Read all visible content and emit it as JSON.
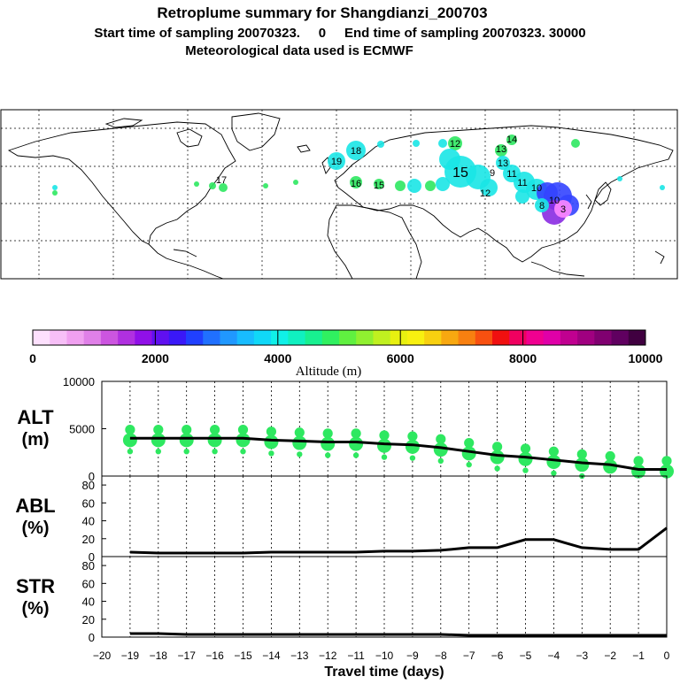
{
  "header": {
    "title": "Retroplume summary for Shangdianzi_200703",
    "subtitle": "Start time of sampling 20070323.     0     End time of sampling 20070323. 30000",
    "met_line": "Meteorological data used is ECMWF"
  },
  "colors": {
    "plume_cyan": "#19e6e6",
    "plume_green": "#2ee860",
    "plume_blue": "#3344ff",
    "plume_purple": "#8a2be2",
    "plume_pink": "#ff88ff",
    "line_black": "#000000",
    "border": "#000000"
  },
  "map": {
    "label_count_note": "plume labels are travel days",
    "labels": [
      {
        "t": "19",
        "tone": "cyan"
      },
      {
        "t": "18",
        "tone": "cyan"
      },
      {
        "t": "17",
        "tone": "green"
      },
      {
        "t": "16",
        "tone": "green"
      },
      {
        "t": "15",
        "tone": "green"
      },
      {
        "t": "14",
        "tone": "green"
      },
      {
        "t": "13",
        "tone": "green"
      },
      {
        "t": "12",
        "tone": "green"
      },
      {
        "t": "11",
        "tone": "cyan"
      },
      {
        "t": "10",
        "tone": "cyan"
      },
      {
        "t": "9",
        "tone": "cyan"
      },
      {
        "t": "8",
        "tone": "cyan"
      },
      {
        "t": "15",
        "tone": "cyan"
      },
      {
        "t": "13",
        "tone": "cyan"
      },
      {
        "t": "12",
        "tone": "cyan"
      },
      {
        "t": "11",
        "tone": "cyan"
      },
      {
        "t": "10",
        "tone": "blue"
      },
      {
        "t": "3",
        "tone": "purple"
      }
    ]
  },
  "colorbar": {
    "ticks": [
      "0",
      "2000",
      "4000",
      "6000",
      "8000",
      "10000"
    ],
    "label": "Altitude (m)",
    "colors": [
      "#fde0fd",
      "#f7bff7",
      "#f0a0f0",
      "#e080e8",
      "#cc55e0",
      "#b030e0",
      "#9010e8",
      "#6010f0",
      "#3a18f8",
      "#2040ff",
      "#2070ff",
      "#2098ff",
      "#18bcff",
      "#10d8f8",
      "#10f0e8",
      "#10f0c0",
      "#18f090",
      "#30f060",
      "#60f040",
      "#90f030",
      "#c0f020",
      "#e8f010",
      "#f8f010",
      "#f8d010",
      "#f8a810",
      "#f88010",
      "#f85010",
      "#f01010",
      "#f00060",
      "#f00090",
      "#e000a8",
      "#c00090",
      "#a00080",
      "#800070",
      "#600060",
      "#400040"
    ]
  },
  "chart_data": [
    {
      "type": "line",
      "name": "ALT",
      "ylabel_top": "ALT",
      "ylabel_bottom": "(m)",
      "xlim": [
        -20,
        0
      ],
      "ylim": [
        0,
        10000
      ],
      "yticks": [
        "10000",
        "5000",
        "0"
      ],
      "x": [
        -19,
        -18,
        -17,
        -16,
        -15,
        -14,
        -13,
        -12,
        -11,
        -10,
        -9,
        -8,
        -7,
        -6,
        -5,
        -4,
        -3,
        -2,
        -1,
        0
      ],
      "values": [
        4000,
        4000,
        4000,
        4000,
        4000,
        3800,
        3700,
        3600,
        3600,
        3400,
        3300,
        3000,
        2600,
        2200,
        2000,
        1700,
        1400,
        1200,
        700,
        700
      ],
      "scatter_note": "green dots show plume altitude distribution"
    },
    {
      "type": "line",
      "name": "ABL",
      "ylabel_top": "ABL",
      "ylabel_bottom": "(%)",
      "xlim": [
        -20,
        0
      ],
      "ylim": [
        0,
        90
      ],
      "yticks": [
        "80",
        "60",
        "40",
        "20",
        "0"
      ],
      "x": [
        -19,
        -18,
        -17,
        -16,
        -15,
        -14,
        -13,
        -12,
        -11,
        -10,
        -9,
        -8,
        -7,
        -6,
        -5,
        -4,
        -3,
        -2,
        -1,
        0
      ],
      "values": [
        5,
        4,
        4,
        4,
        4,
        5,
        5,
        5,
        5,
        6,
        6,
        7,
        10,
        10,
        19,
        19,
        10,
        8,
        8,
        32
      ]
    },
    {
      "type": "line",
      "name": "STR",
      "ylabel_top": "STR",
      "ylabel_bottom": "(%)",
      "xlim": [
        -20,
        0
      ],
      "ylim": [
        0,
        90
      ],
      "yticks": [
        "80",
        "60",
        "40",
        "20",
        "0"
      ],
      "x": [
        -19,
        -18,
        -17,
        -16,
        -15,
        -14,
        -13,
        -12,
        -11,
        -10,
        -9,
        -8,
        -7,
        -6,
        -5,
        -4,
        -3,
        -2,
        -1,
        0
      ],
      "values": [
        4,
        4,
        3,
        3,
        3,
        3,
        3,
        3,
        3,
        3,
        3,
        3,
        2,
        2,
        2,
        2,
        2,
        2,
        2,
        2
      ],
      "xlabel": "Travel time (days)",
      "xticks": [
        "−20",
        "−19",
        "−18",
        "−17",
        "−16",
        "−15",
        "−14",
        "−13",
        "−12",
        "−11",
        "−10",
        "−9",
        "−8",
        "−7",
        "−6",
        "−5",
        "−4",
        "−3",
        "−2",
        "−1",
        "0"
      ]
    }
  ]
}
